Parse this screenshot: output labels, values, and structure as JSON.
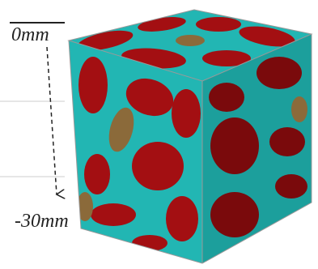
{
  "labels": {
    "top": "0mm",
    "bottom": "-30mm"
  }
}
